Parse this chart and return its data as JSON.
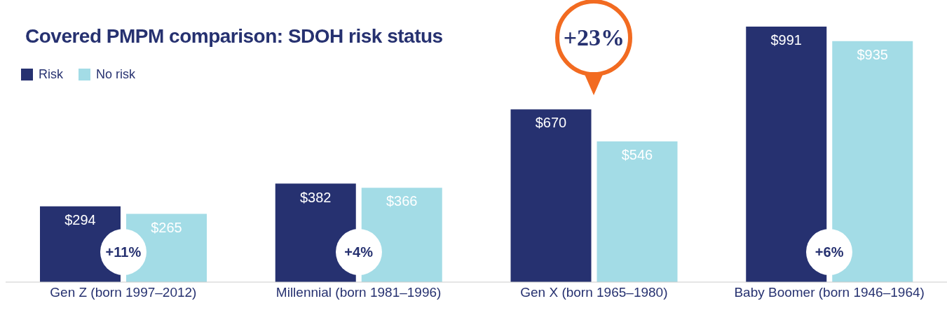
{
  "chart_data": {
    "type": "bar",
    "title": "Covered PMPM comparison: SDOH risk status",
    "categories": [
      "Gen Z (born 1997–2012)",
      "Millennial (born 1981–1996)",
      "Gen X (born 1965–1980)",
      "Baby Boomer (born 1946–1964)"
    ],
    "series": [
      {
        "name": "Risk",
        "color": "#263170",
        "values": [
          294,
          382,
          670,
          991
        ],
        "value_labels": [
          "$294",
          "$382",
          "$670",
          "$991"
        ]
      },
      {
        "name": "No risk",
        "color": "#a3dce6",
        "values": [
          265,
          366,
          546,
          935
        ],
        "value_labels": [
          "$265",
          "$366",
          "$546",
          "$935"
        ]
      }
    ],
    "annotations": [
      {
        "text": "+11%",
        "x": "Gen Z (born 1997–2012)"
      },
      {
        "text": "+4%",
        "x": "Millennial (born 1981–1996)"
      },
      "+23%",
      {
        "text": "+6%",
        "x": "Baby Boomer (born 1946–1964)"
      }
    ],
    "legend": "top left"
  }
}
